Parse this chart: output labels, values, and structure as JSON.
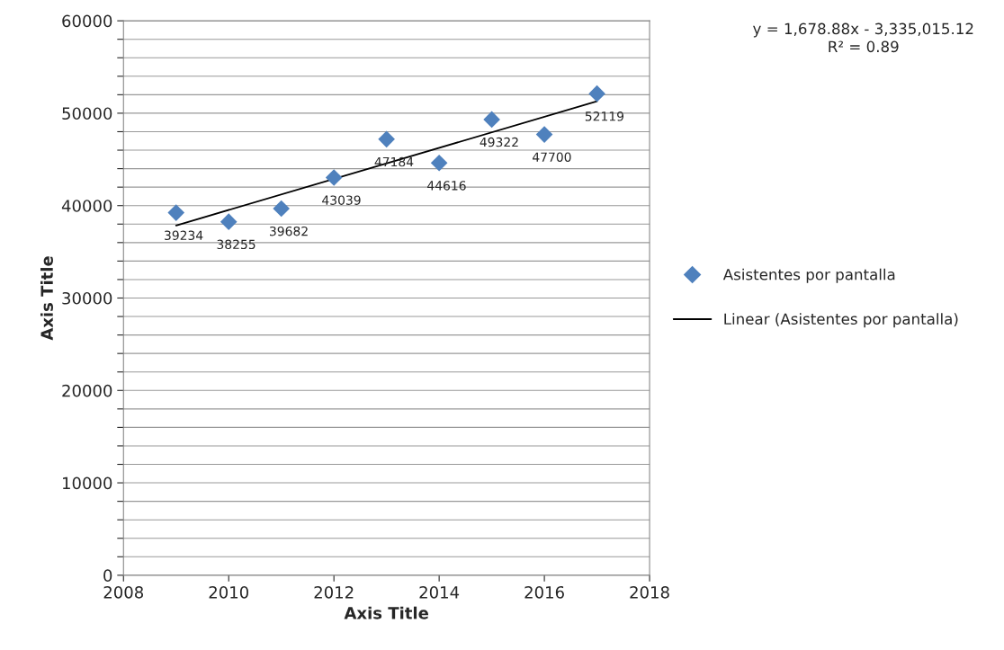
{
  "chart_data": {
    "type": "scatter",
    "xlabel": "Axis Title",
    "ylabel": "Axis Title",
    "annotations": [
      "y = 1,678.88x - 3,335,015.12\nR² = 0.89"
    ],
    "x": [
      2009,
      2010,
      2011,
      2012,
      2013,
      2014,
      2015,
      2016,
      2017
    ],
    "series": [
      {
        "name": "Asistentes por pantalla",
        "color": "#4f81bd",
        "marker": "diamond",
        "values": [
          39234,
          38255,
          39682,
          43039,
          47184,
          44616,
          49322,
          47700,
          52119
        ],
        "value_labels": [
          "39234",
          "38255",
          "39682",
          "43039",
          "47184",
          "44616",
          "49322",
          "47700",
          "52119"
        ]
      },
      {
        "name": "Linear (Asistentes por pantalla)",
        "type": "line",
        "color": "#000000",
        "line_style": "solid",
        "x": [
          2009,
          2017
        ],
        "values": [
          37850,
          51290
        ]
      }
    ],
    "xlim": [
      2008,
      2018
    ],
    "xticks": [
      2008,
      2010,
      2012,
      2014,
      2016,
      2018
    ],
    "ylim": [
      0,
      60000
    ],
    "yticks": [
      0,
      {
        "value": 2000,
        "label": null
      },
      {
        "value": 4000,
        "label": null
      },
      {
        "value": 6000,
        "label": null
      },
      {
        "value": 8000,
        "label": null
      },
      10000,
      {
        "value": 12000,
        "label": null
      },
      {
        "value": 14000,
        "label": null
      },
      {
        "value": 16000,
        "label": null
      },
      {
        "value": 18000,
        "label": null
      },
      20000,
      {
        "value": 22000,
        "label": null
      },
      {
        "value": 24000,
        "label": null
      },
      {
        "value": 26000,
        "label": null
      },
      {
        "value": 28000,
        "label": null
      },
      30000,
      {
        "value": 32000,
        "label": null
      },
      {
        "value": 34000,
        "label": null
      },
      {
        "value": 36000,
        "label": null
      },
      {
        "value": 38000,
        "label": null
      },
      40000,
      {
        "value": 42000,
        "label": null
      },
      {
        "value": 44000,
        "label": null
      },
      {
        "value": 46000,
        "label": null
      },
      {
        "value": 48000,
        "label": null
      },
      50000,
      {
        "value": 52000,
        "label": null
      },
      {
        "value": 54000,
        "label": null
      },
      {
        "value": 56000,
        "label": null
      },
      {
        "value": 58000,
        "label": null
      },
      60000
    ],
    "grid": "y",
    "legend": "right"
  }
}
